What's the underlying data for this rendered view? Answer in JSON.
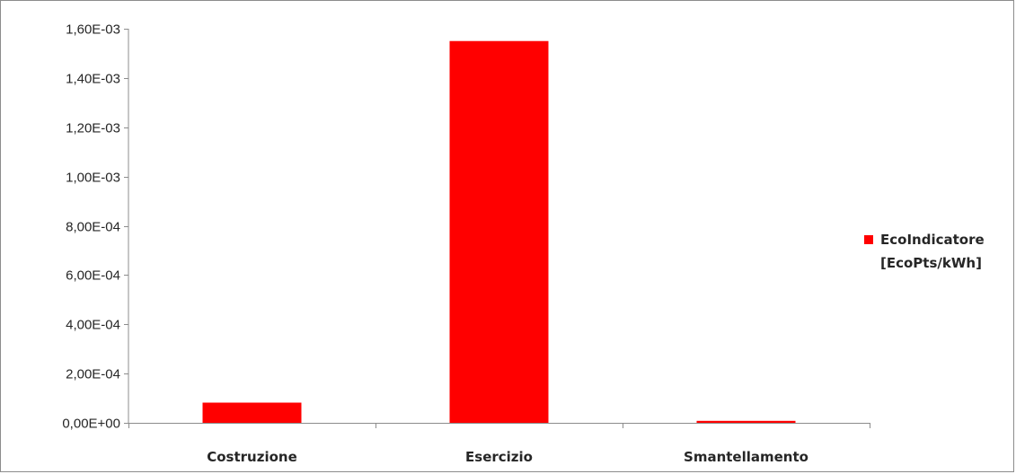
{
  "chart_data": {
    "type": "bar",
    "categories": [
      "Costruzione",
      "Esercizio",
      "Smantellamento"
    ],
    "series": [
      {
        "name": "EcoIndicatore [EcoPts/kWh]",
        "values": [
          8.2e-05,
          0.00155,
          8e-06
        ]
      }
    ],
    "legend_lines": [
      "EcoIndicatore",
      "[EcoPts/kWh]"
    ],
    "ylim": [
      0,
      0.0016
    ],
    "y_ticks": [
      0,
      0.0002,
      0.0004,
      0.0006,
      0.0008,
      0.001,
      0.0012,
      0.0014,
      0.0016
    ],
    "y_tick_labels": [
      "0,00E+00",
      "2,00E-04",
      "4,00E-04",
      "6,00E-04",
      "8,00E-04",
      "1,00E-03",
      "1,20E-03",
      "1,40E-03",
      "1,60E-03"
    ],
    "title": "",
    "xlabel": "",
    "ylabel": "",
    "grid": false,
    "legend_position": "right",
    "bar_color": "#ff0000",
    "axis_color": "#8c8c8c"
  }
}
